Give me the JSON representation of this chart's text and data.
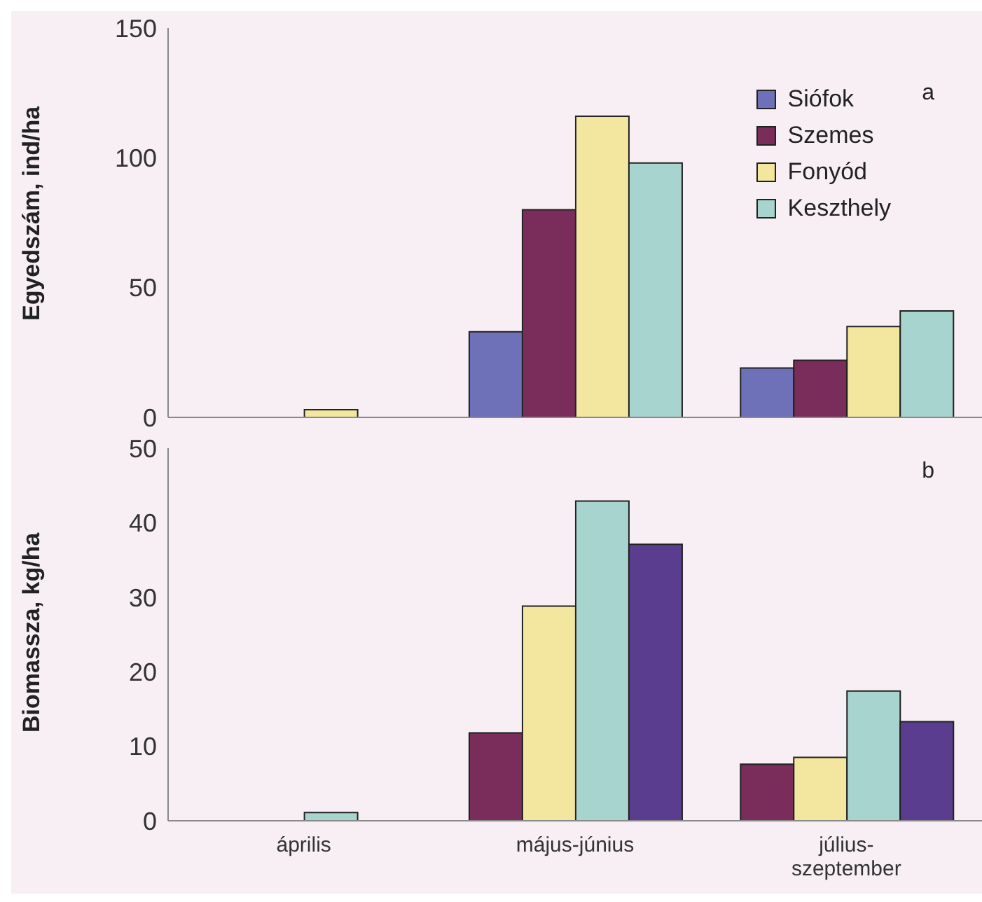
{
  "chart_data": [
    {
      "type": "bar",
      "ylabel": "Egyedszám, ind/ha",
      "annotations": [
        "a"
      ],
      "categories": [
        null,
        null,
        null
      ],
      "series": [
        {
          "name": "Siófok",
          "color": "#6e70b8",
          "values": [
            0,
            33,
            19
          ]
        },
        {
          "name": "Szemes",
          "color": "#7a2d5a",
          "values": [
            0,
            80,
            22
          ]
        },
        {
          "name": "Fonyód",
          "color": "#f3e7a0",
          "values": [
            3,
            116,
            35
          ]
        },
        {
          "name": "Keszthely",
          "color": "#a8d4d0",
          "values": [
            0,
            98,
            41
          ]
        }
      ],
      "ylim": [
        0,
        150
      ],
      "yticks": [
        0,
        50,
        100,
        150
      ],
      "legend": "top right",
      "tick_labels": "y"
    },
    {
      "type": "bar",
      "ylabel": "Biomassza, kg/ha",
      "annotations": [
        "b"
      ],
      "categories": [
        "április",
        "május-június",
        "július-szeptember"
      ],
      "series": [
        {
          "color": "#7a2d5a",
          "values": [
            0,
            11.8,
            7.6
          ]
        },
        {
          "color": "#f3e7a0",
          "values": [
            0,
            28.8,
            8.5
          ]
        },
        {
          "color": "#a8d4d0",
          "values": [
            1.1,
            42.9,
            17.4
          ]
        },
        {
          "color": "#5a3d8e",
          "values": [
            0,
            37.1,
            13.3
          ]
        }
      ],
      "ylim": [
        0,
        50
      ],
      "yticks": [
        0,
        10,
        20,
        30,
        40,
        50
      ]
    }
  ]
}
